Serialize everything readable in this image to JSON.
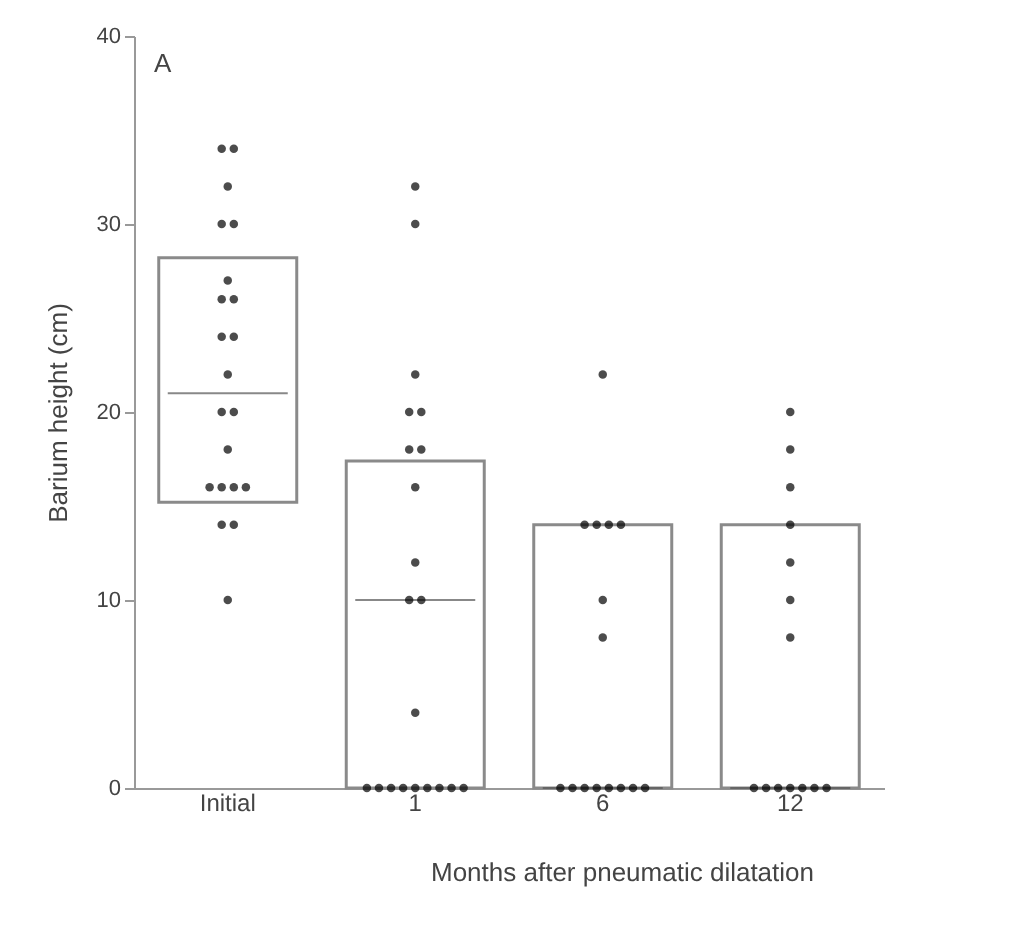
{
  "chart_data": {
    "type": "box",
    "annotations": [
      "A"
    ],
    "ylabel": "Barium height (cm)",
    "xlabel": "Months after pneumatic dilatation",
    "categories": [
      "Initial",
      "1",
      "6",
      "12"
    ],
    "boxes": [
      {
        "low": 15.2,
        "q1": 15.2,
        "median": 21,
        "q3": 28.2,
        "high": 28.2
      },
      {
        "low": 0,
        "q1": 0,
        "median": 10,
        "q3": 17.4,
        "high": 17.4
      },
      {
        "low": 0,
        "q1": 0,
        "median": 0,
        "q3": 14,
        "high": 14
      },
      {
        "low": 0,
        "q1": 0,
        "median": 0,
        "q3": 14,
        "high": 14
      }
    ],
    "series": [
      {
        "type": "scatter",
        "color": "#000000",
        "x": [
          "Initial",
          "Initial",
          "Initial",
          "Initial",
          "Initial",
          "Initial",
          "Initial",
          "Initial",
          "Initial",
          "Initial",
          "Initial",
          "Initial",
          "Initial",
          "Initial",
          "Initial",
          "Initial",
          "Initial",
          "Initial",
          "Initial",
          "Initial",
          "Initial",
          "1",
          "1",
          "1",
          "1",
          "1",
          "1",
          "1",
          "1",
          "1",
          "1",
          "1",
          "1",
          "1",
          "1",
          "1",
          "1",
          "1",
          "1",
          "1",
          "1",
          "1",
          "6",
          "6",
          "6",
          "6",
          "6",
          "6",
          "6",
          "6",
          "6",
          "6",
          "6",
          "6",
          "6",
          "6",
          "6",
          "12",
          "12",
          "12",
          "12",
          "12",
          "12",
          "12",
          "12",
          "12",
          "12",
          "12",
          "12",
          "12",
          "12"
        ],
        "values": [
          34,
          34,
          32,
          30,
          30,
          27,
          26,
          26,
          24,
          24,
          22,
          20,
          20,
          18,
          16,
          16,
          16,
          16,
          14,
          14,
          10,
          32,
          30,
          22,
          20,
          20,
          18,
          18,
          16,
          12,
          10,
          10,
          4,
          0,
          0,
          0,
          0,
          0,
          0,
          0,
          0,
          0,
          22,
          14,
          14,
          14,
          14,
          10,
          8,
          0,
          0,
          0,
          0,
          0,
          0,
          0,
          0,
          20,
          18,
          16,
          14,
          12,
          10,
          8,
          0,
          0,
          0,
          0,
          0,
          0,
          0
        ]
      }
    ],
    "ylim": [
      0,
      40
    ],
    "yticks": [
      0,
      10,
      20,
      30,
      40
    ],
    "marker": "circle",
    "grid": false
  }
}
